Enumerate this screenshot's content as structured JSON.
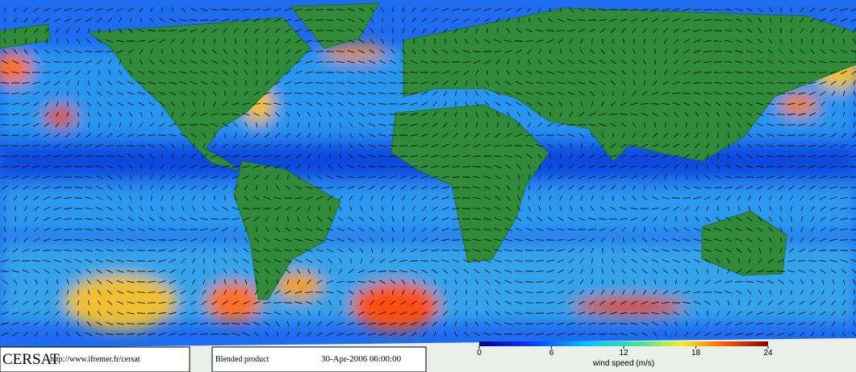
{
  "logo": {
    "name": "CERSAT",
    "url": "http://www.ifremer.fr/cersat"
  },
  "product": {
    "label": "Blended product",
    "datetime": "30-Apr-2006 06:00:00"
  },
  "colorbar": {
    "label": "wind speed (m/s)",
    "range": [
      0,
      24
    ],
    "ticks": [
      0,
      6,
      12,
      18,
      24
    ]
  }
}
